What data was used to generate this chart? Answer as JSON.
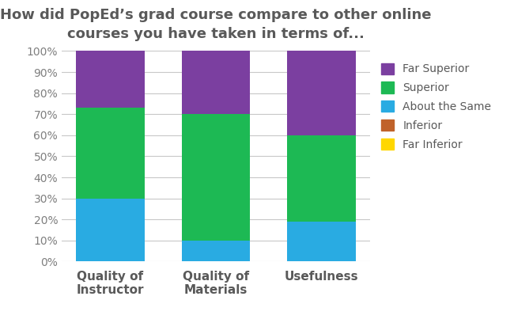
{
  "title": "How did PopEd’s grad course compare to other online\ncourses you have taken in terms of...",
  "categories": [
    "Quality of\nInstructor",
    "Quality of\nMaterials",
    "Usefulness"
  ],
  "series": [
    {
      "label": "Far Inferior",
      "color": "#FFD700",
      "values": [
        0,
        0,
        0
      ]
    },
    {
      "label": "Inferior",
      "color": "#C0622A",
      "values": [
        0,
        0,
        0
      ]
    },
    {
      "label": "About the Same",
      "color": "#29ABE2",
      "values": [
        30,
        10,
        19
      ]
    },
    {
      "label": "Superior",
      "color": "#1DB954",
      "values": [
        43,
        60,
        41
      ]
    },
    {
      "label": "Far Superior",
      "color": "#7B3FA0",
      "values": [
        27,
        30,
        40
      ]
    }
  ],
  "ylim": [
    0,
    100
  ],
  "ytick_labels": [
    "0%",
    "10%",
    "20%",
    "30%",
    "40%",
    "50%",
    "60%",
    "70%",
    "80%",
    "90%",
    "100%"
  ],
  "ytick_values": [
    0,
    10,
    20,
    30,
    40,
    50,
    60,
    70,
    80,
    90,
    100
  ],
  "bar_width": 0.65,
  "title_fontsize": 13,
  "legend_fontsize": 10,
  "tick_fontsize": 10,
  "background_color": "#FFFFFF",
  "grid_color": "#C8C8C8",
  "title_color": "#595959",
  "tick_label_color": "#7F7F7F",
  "x_tick_color": "#595959"
}
